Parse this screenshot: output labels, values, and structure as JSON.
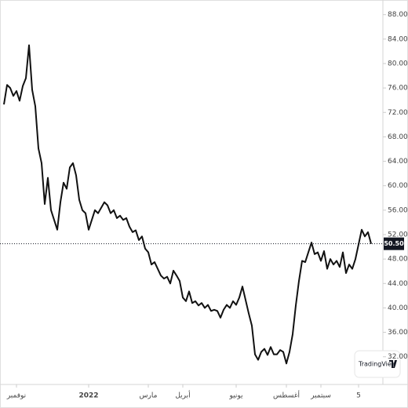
{
  "chart_data": {
    "type": "line",
    "series": [
      {
        "name": "price",
        "color": "#111111",
        "values": [
          73.3,
          76.5,
          76,
          74.7,
          75.5,
          73.9,
          76.3,
          77.6,
          83,
          75.7,
          73,
          66.1,
          63.7,
          57,
          61.3,
          56,
          54.4,
          52.8,
          57.3,
          60.5,
          59.5,
          63,
          63.7,
          61.7,
          57.7,
          56,
          55.5,
          52.8,
          54.4,
          56,
          55.5,
          56.4,
          57.3,
          56.8,
          55.5,
          56,
          54.7,
          55.1,
          54.4,
          54.7,
          53.3,
          52.4,
          52.7,
          51.1,
          51.7,
          49.7,
          49.1,
          47.1,
          47.5,
          46.4,
          45.3,
          44.8,
          45.1,
          44,
          46.1,
          45.3,
          44.4,
          41.7,
          41.1,
          42.7,
          40.8,
          41.1,
          40.4,
          40.8,
          40,
          40.5,
          39.5,
          39.7,
          39.5,
          38.4,
          39.7,
          40.5,
          40,
          41.1,
          40.5,
          41.7,
          43.5,
          41.3,
          39.1,
          37.1,
          32.4,
          31.5,
          32.8,
          33.3,
          32.3,
          33.6,
          32.4,
          32.4,
          33.1,
          32.8,
          30.9,
          32.8,
          35.7,
          40.4,
          44.4,
          47.7,
          47.5,
          49.1,
          50.7,
          48.8,
          49.1,
          47.7,
          49.3,
          46.4,
          48,
          47.1,
          47.7,
          46.7,
          49.1,
          45.7,
          47.1,
          46.4,
          48,
          50.4,
          52.8,
          51.7,
          52.4,
          50.5
        ]
      }
    ],
    "last_price": {
      "value": 50.5,
      "label": "50.50"
    },
    "ylim": [
      27.47,
      90.4
    ],
    "yticks": [
      {
        "value": 88,
        "label": "88.00"
      },
      {
        "value": 84,
        "label": "84.00"
      },
      {
        "value": 80,
        "label": "80.00"
      },
      {
        "value": 76,
        "label": "76.00"
      },
      {
        "value": 72,
        "label": "72.00"
      },
      {
        "value": 68,
        "label": "68.00"
      },
      {
        "value": 64,
        "label": "64.00"
      },
      {
        "value": 60,
        "label": "60.00"
      },
      {
        "value": 56,
        "label": "56.00"
      },
      {
        "value": 52,
        "label": "52.00"
      },
      {
        "value": 48,
        "label": "48.00"
      },
      {
        "value": 44,
        "label": "44.00"
      },
      {
        "value": 40,
        "label": "40.00"
      },
      {
        "value": 36,
        "label": "36.00"
      },
      {
        "value": 32,
        "label": "32.00"
      }
    ],
    "xticks": [
      {
        "value": 4,
        "label": "نوفمبر"
      },
      {
        "value": 27,
        "label": "2022"
      },
      {
        "value": 46,
        "label": "مارس"
      },
      {
        "value": 57,
        "label": "أبريل"
      },
      {
        "value": 74,
        "label": "يونيو"
      },
      {
        "value": 90,
        "label": "أغسطس"
      },
      {
        "value": 101,
        "label": "سبتمبر"
      },
      {
        "value": 113,
        "label": "5"
      }
    ],
    "watermark": "TradingView"
  }
}
